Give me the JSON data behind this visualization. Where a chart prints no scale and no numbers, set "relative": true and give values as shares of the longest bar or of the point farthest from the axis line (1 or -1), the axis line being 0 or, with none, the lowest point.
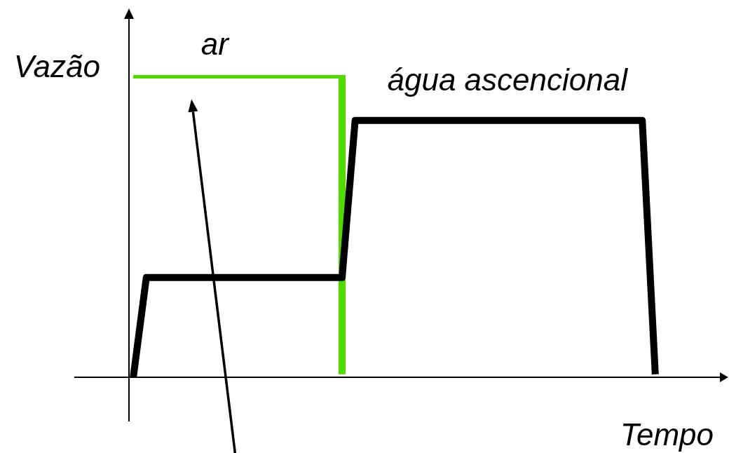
{
  "chart_data": {
    "type": "line",
    "relative": true,
    "xlabel": "Tempo",
    "ylabel": "Vazão",
    "legend": false,
    "marker": "none",
    "line_style": "solid",
    "categories": [
      null,
      null,
      null,
      null,
      null,
      null,
      null,
      null,
      null,
      null,
      null,
      null,
      null,
      null,
      null,
      null,
      null,
      null,
      null,
      null,
      null,
      null,
      null,
      null,
      null,
      null,
      null,
      null,
      null,
      null,
      null,
      null,
      null,
      null,
      null,
      null,
      null,
      null,
      null,
      null,
      null
    ],
    "series": [
      {
        "name": "ar",
        "type": "step",
        "color": "#50dc00",
        "values": [
          1,
          1,
          1,
          1,
          1,
          1,
          1,
          1,
          1,
          1,
          1,
          1,
          1,
          1,
          1,
          1,
          0.01,
          null,
          null,
          null,
          null,
          null,
          null,
          null,
          null,
          null,
          null,
          null,
          null,
          null,
          null,
          null,
          null,
          null,
          null,
          null,
          null,
          null,
          null,
          null,
          null
        ]
      },
      {
        "name": "água ascencional",
        "type": "line",
        "color": "#000000",
        "values": [
          0,
          0.33,
          0.33,
          0.33,
          0.33,
          0.33,
          0.33,
          0.33,
          0.33,
          0.33,
          0.33,
          0.33,
          0.33,
          0.33,
          0.33,
          0.33,
          0.33,
          0.85,
          0.85,
          0.85,
          0.85,
          0.85,
          0.85,
          0.85,
          0.85,
          0.85,
          0.85,
          0.85,
          0.85,
          0.85,
          0.85,
          0.85,
          0.85,
          0.85,
          0.85,
          0.85,
          0.85,
          0.85,
          0.85,
          0.85,
          0.01
        ]
      }
    ]
  }
}
